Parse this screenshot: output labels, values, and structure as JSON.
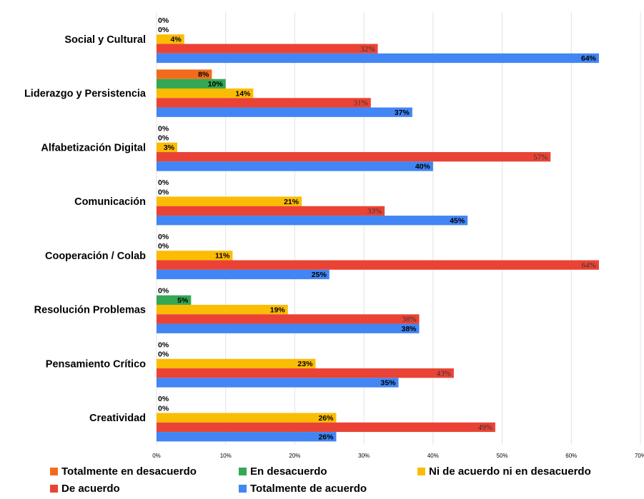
{
  "chart_data": {
    "type": "bar",
    "orientation": "horizontal",
    "categories": [
      "Social y Cultural",
      "Liderazgo y Persistencia",
      "Alfabetización Digital",
      "Comunicación",
      "Cooperación / Colab",
      "Resolución Problemas",
      "Pensamiento Crítico",
      "Creatividad"
    ],
    "series": [
      {
        "name": "Totalmente en desacuerdo",
        "color": "#f26b1d",
        "values": [
          0,
          8,
          0,
          0,
          0,
          0,
          0,
          0
        ]
      },
      {
        "name": "En desacuerdo",
        "color": "#34a853",
        "values": [
          0,
          10,
          0,
          0,
          0,
          5,
          0,
          0
        ]
      },
      {
        "name": "Ni de acuerdo ni en desacuerdo",
        "color": "#fbbc04",
        "values": [
          4,
          14,
          3,
          21,
          11,
          19,
          23,
          26
        ]
      },
      {
        "name": "De acuerdo",
        "color": "#ea4335",
        "values": [
          32,
          31,
          57,
          33,
          64,
          38,
          43,
          49
        ]
      },
      {
        "name": "Totalmente de acuerdo",
        "color": "#4285f4",
        "values": [
          64,
          37,
          40,
          45,
          25,
          38,
          35,
          26
        ]
      }
    ],
    "xlim": [
      0,
      70
    ],
    "xticks": [
      "0%",
      "10%",
      "20%",
      "30%",
      "40%",
      "50%",
      "60%",
      "70%"
    ],
    "grid": true,
    "legend_position": "bottom"
  }
}
